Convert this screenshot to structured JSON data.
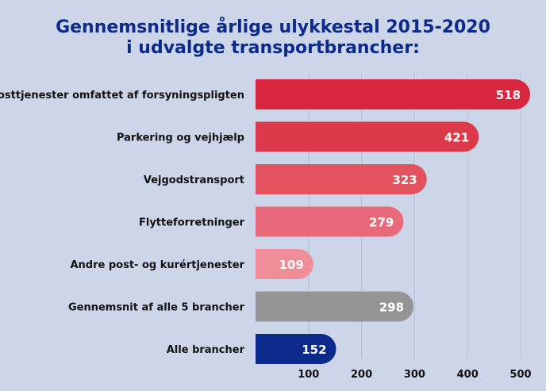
{
  "chart_data": {
    "type": "bar",
    "orientation": "horizontal",
    "title": "Gennemsnitlige årlige ulykkestal 2015-2020 i udvalgte transportbrancher:",
    "title_lines": [
      "Gennemsnitlige årlige ulykkestal 2015-2020",
      "i udvalgte transportbrancher:"
    ],
    "categories": [
      "Posttjenester omfattet af forsyningspligten",
      "Parkering og vejhjælp",
      "Vejgodstransport",
      "Flytteforretninger",
      "Andre post- og kurértjenester",
      "Gennemsnit af alle 5 brancher",
      "Alle brancher"
    ],
    "values": [
      518,
      421,
      323,
      279,
      109,
      298,
      152
    ],
    "value_labels": [
      "518",
      "421",
      "323",
      "279",
      "109",
      "298",
      "152"
    ],
    "colors": [
      "#d7263d",
      "#dc3a4b",
      "#e2535f",
      "#e8697a",
      "#ef8e97",
      "#959595",
      "#0b2a8c"
    ],
    "xlim": [
      0,
      500
    ],
    "xticks": [
      100,
      200,
      300,
      400,
      500
    ],
    "xtick_labels": [
      "100",
      "200",
      "300",
      "400",
      "500"
    ],
    "xlabel": "",
    "ylabel": "",
    "grid": true,
    "legend": "none",
    "background": "#cdd6e8",
    "title_color": "#0b2a8c"
  }
}
